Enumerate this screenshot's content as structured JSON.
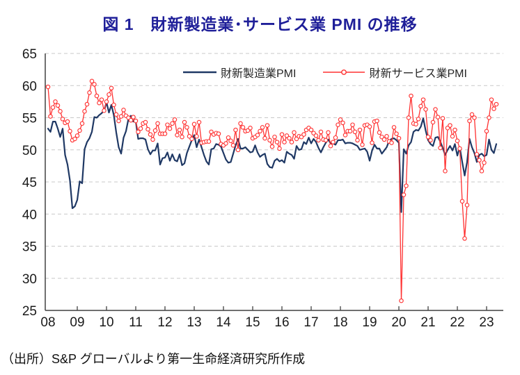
{
  "title": "図 1　財新製造業･サービス業 PMI の推移",
  "source": "（出所）S&P グローバルより第一生命経済研究所作成",
  "colors": {
    "title": "#1F1F99",
    "manufacturing": "#1F3864",
    "services": "#FF3030",
    "gridline": "#C8C8C8",
    "axis": "#404040",
    "tick_text": "#1A1A1A"
  },
  "chart_data": {
    "type": "line",
    "title": "図 1　財新製造業･サービス業 PMI の推移",
    "x_frequency": "monthly",
    "x_start": "2008-01",
    "x_end": "2023-05",
    "x_tick_labels": [
      "08",
      "09",
      "10",
      "11",
      "12",
      "13",
      "14",
      "15",
      "16",
      "17",
      "18",
      "19",
      "20",
      "21",
      "22",
      "23"
    ],
    "ylim": [
      25,
      65
    ],
    "y_ticks": [
      25,
      30,
      35,
      40,
      45,
      50,
      55,
      60,
      65
    ],
    "grid": "horizontal-dashed",
    "legend_position": "top-inside",
    "series": [
      {
        "name": "財新製造業PMI",
        "color": "#1F3864",
        "marker": "none",
        "values": [
          53.3,
          52.8,
          54.4,
          54.4,
          53.3,
          52.0,
          53.3,
          49.2,
          47.7,
          45.2,
          40.9,
          41.2,
          42.2,
          45.1,
          44.8,
          50.1,
          51.2,
          51.8,
          52.8,
          55.1,
          55.0,
          55.4,
          55.7,
          56.1,
          57.4,
          55.8,
          57.0,
          55.4,
          52.7,
          50.4,
          49.4,
          51.9,
          52.9,
          54.8,
          55.3,
          54.4,
          54.5,
          51.7,
          51.8,
          51.8,
          51.6,
          50.1,
          49.3,
          49.9,
          49.9,
          51.0,
          47.7,
          48.7,
          48.8,
          49.6,
          48.3,
          49.3,
          48.4,
          48.2,
          49.3,
          47.6,
          47.9,
          49.5,
          50.5,
          51.5,
          52.3,
          50.4,
          51.6,
          50.4,
          49.2,
          48.2,
          47.7,
          50.1,
          50.2,
          50.9,
          50.8,
          50.5,
          49.5,
          48.5,
          48.0,
          48.1,
          49.4,
          50.7,
          51.7,
          50.2,
          50.2,
          50.4,
          50.0,
          49.6,
          49.7,
          50.7,
          49.6,
          48.9,
          49.2,
          49.4,
          47.8,
          47.3,
          47.2,
          48.3,
          48.6,
          48.2,
          48.4,
          48.0,
          49.7,
          49.4,
          49.2,
          48.6,
          50.6,
          50.0,
          50.1,
          51.2,
          50.9,
          51.9,
          51.0,
          51.7,
          51.2,
          50.3,
          49.6,
          50.4,
          51.1,
          51.6,
          51.0,
          51.0,
          50.8,
          51.5,
          51.5,
          51.6,
          51.0,
          51.1,
          51.1,
          51.0,
          50.8,
          50.6,
          50.0,
          50.1,
          50.2,
          49.7,
          48.3,
          49.9,
          50.8,
          50.2,
          50.2,
          49.4,
          49.9,
          50.4,
          51.4,
          51.7,
          51.8,
          51.5,
          51.1,
          40.3,
          50.1,
          49.4,
          50.7,
          51.2,
          52.8,
          53.1,
          53.0,
          53.6,
          54.9,
          53.0,
          51.5,
          50.9,
          50.6,
          51.9,
          52.0,
          51.3,
          50.3,
          49.2,
          50.0,
          50.6,
          49.9,
          50.9,
          49.1,
          50.4,
          48.1,
          46.0,
          48.1,
          51.7,
          50.4,
          49.5,
          48.1,
          49.2,
          49.4,
          49.0,
          49.2,
          51.6,
          50.0,
          49.5,
          50.9
        ]
      },
      {
        "name": "財新サービス業PMI",
        "color": "#FF3030",
        "marker": "circle-open",
        "values": [
          59.8,
          55.2,
          56.6,
          57.5,
          56.9,
          56.0,
          54.8,
          54.2,
          54.4,
          52.9,
          51.5,
          51.7,
          52.2,
          53.0,
          54.1,
          56.0,
          57.1,
          58.9,
          60.7,
          60.2,
          58.4,
          57.3,
          57.8,
          56.1,
          57.5,
          58.6,
          59.6,
          57.0,
          55.5,
          54.5,
          55.2,
          56.2,
          55.3,
          55.0,
          54.6,
          55.1,
          54.5,
          52.8,
          53.3,
          54.1,
          54.3,
          53.2,
          52.4,
          51.6,
          53.0,
          54.1,
          52.5,
          52.5,
          52.5,
          53.9,
          53.3,
          54.1,
          54.7,
          52.3,
          53.1,
          52.0,
          54.3,
          53.5,
          52.1,
          51.7,
          54.0,
          52.1,
          54.3,
          51.1,
          51.2,
          51.3,
          51.3,
          52.8,
          52.4,
          52.6,
          52.5,
          50.9,
          50.7,
          51.0,
          51.9,
          51.4,
          50.7,
          53.1,
          50.0,
          54.1,
          53.5,
          52.9,
          53.0,
          53.4,
          51.8,
          52.0,
          52.3,
          52.9,
          53.5,
          51.8,
          53.8,
          51.5,
          50.5,
          52.0,
          51.2,
          50.2,
          52.4,
          51.2,
          52.2,
          51.8,
          51.2,
          52.7,
          51.7,
          52.1,
          52.0,
          52.4,
          53.1,
          53.4,
          53.1,
          52.6,
          52.2,
          51.5,
          52.8,
          51.6,
          51.5,
          52.7,
          50.6,
          51.2,
          51.9,
          53.9,
          54.7,
          54.2,
          52.3,
          52.9,
          52.9,
          53.9,
          52.8,
          51.5,
          53.1,
          50.8,
          53.8,
          53.9,
          53.6,
          51.1,
          54.4,
          54.5,
          52.7,
          52.0,
          51.6,
          52.1,
          51.3,
          51.1,
          53.5,
          52.5,
          51.8,
          26.5,
          43.0,
          44.4,
          55.0,
          58.4,
          54.1,
          54.0,
          54.8,
          56.8,
          57.8,
          56.3,
          52.0,
          51.5,
          54.3,
          56.3,
          55.1,
          50.3,
          54.9,
          46.7,
          53.4,
          53.8,
          52.1,
          53.1,
          51.4,
          50.2,
          42.0,
          36.2,
          41.4,
          54.5,
          55.5,
          55.0,
          49.3,
          48.4,
          46.7,
          48.0,
          52.9,
          55.0,
          57.8,
          56.4,
          57.1
        ]
      }
    ]
  }
}
